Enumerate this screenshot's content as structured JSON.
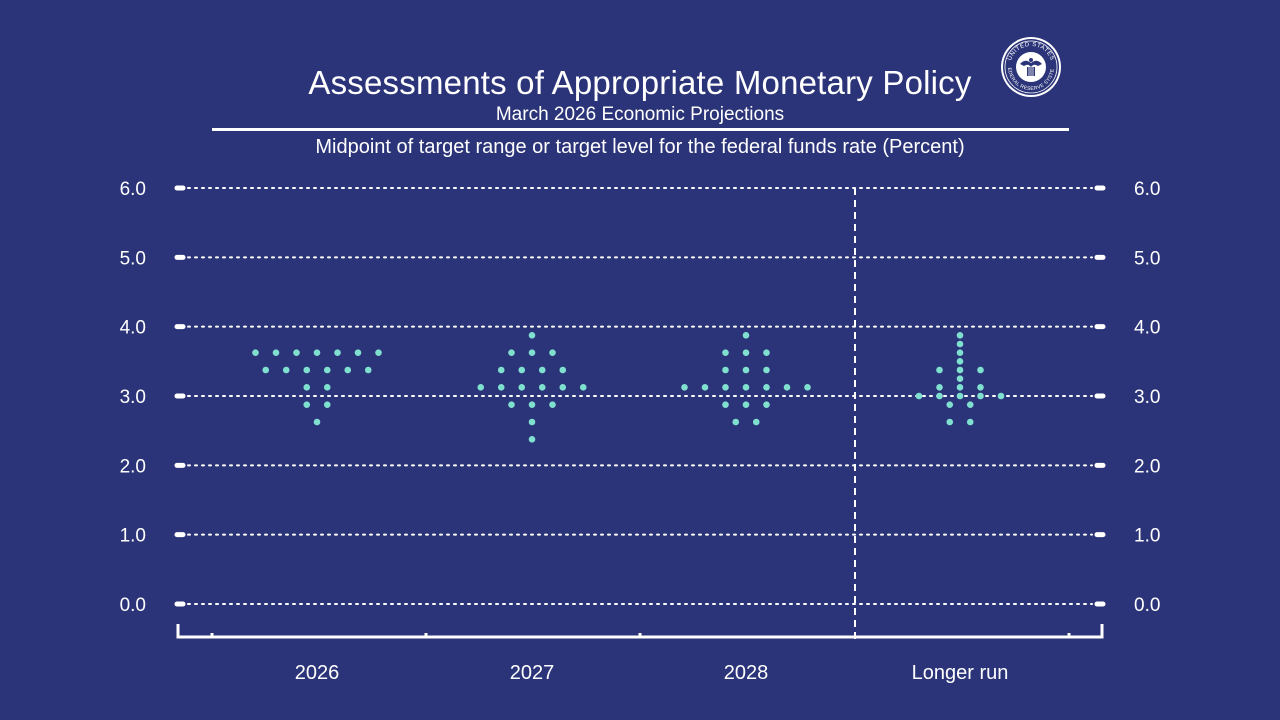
{
  "header": {
    "title": "Assessments of Appropriate Monetary Policy",
    "subtitle": "March 2026 Economic Projections",
    "caption": "Midpoint of target range or target level for the federal funds rate (Percent)",
    "seal_text": "UNITED STATES FEDERAL RESERVE SYSTEM"
  },
  "colors": {
    "background": "#2b3478",
    "dots": "#7fe0cf",
    "lines": "#ffffff"
  },
  "chart_data": {
    "type": "scatter",
    "title": "Assessments of Appropriate Monetary Policy",
    "subtitle": "March 2026 Economic Projections",
    "ylabel": "Midpoint of target range or target level for the federal funds rate (Percent)",
    "ylim": [
      0,
      6
    ],
    "yticks": [
      "0.0",
      "1.0",
      "2.0",
      "3.0",
      "4.0",
      "5.0",
      "6.0"
    ],
    "grid": true,
    "categories": [
      "2026",
      "2027",
      "2028",
      "Longer run"
    ],
    "projections": [
      {
        "category": "2026",
        "levels": [
          {
            "value": 3.625,
            "count": 7
          },
          {
            "value": 3.375,
            "count": 6
          },
          {
            "value": 3.125,
            "count": 2
          },
          {
            "value": 2.875,
            "count": 2
          },
          {
            "value": 2.625,
            "count": 1
          }
        ]
      },
      {
        "category": "2027",
        "levels": [
          {
            "value": 3.875,
            "count": 1
          },
          {
            "value": 3.625,
            "count": 3
          },
          {
            "value": 3.375,
            "count": 4
          },
          {
            "value": 3.125,
            "count": 6
          },
          {
            "value": 2.875,
            "count": 3
          },
          {
            "value": 2.625,
            "count": 1
          },
          {
            "value": 2.375,
            "count": 1
          }
        ]
      },
      {
        "category": "2028",
        "levels": [
          {
            "value": 3.875,
            "count": 1
          },
          {
            "value": 3.625,
            "count": 3
          },
          {
            "value": 3.375,
            "count": 3
          },
          {
            "value": 3.125,
            "count": 7
          },
          {
            "value": 2.875,
            "count": 3
          },
          {
            "value": 2.625,
            "count": 2
          }
        ]
      },
      {
        "category": "Longer run",
        "levels": [
          {
            "value": 3.875,
            "count": 1
          },
          {
            "value": 3.75,
            "count": 1
          },
          {
            "value": 3.625,
            "count": 1
          },
          {
            "value": 3.5,
            "count": 1
          },
          {
            "value": 3.375,
            "count": 3
          },
          {
            "value": 3.25,
            "count": 1
          },
          {
            "value": 3.125,
            "count": 3
          },
          {
            "value": 3.0,
            "count": 5
          },
          {
            "value": 2.875,
            "count": 2
          },
          {
            "value": 2.625,
            "count": 2
          }
        ]
      }
    ]
  }
}
